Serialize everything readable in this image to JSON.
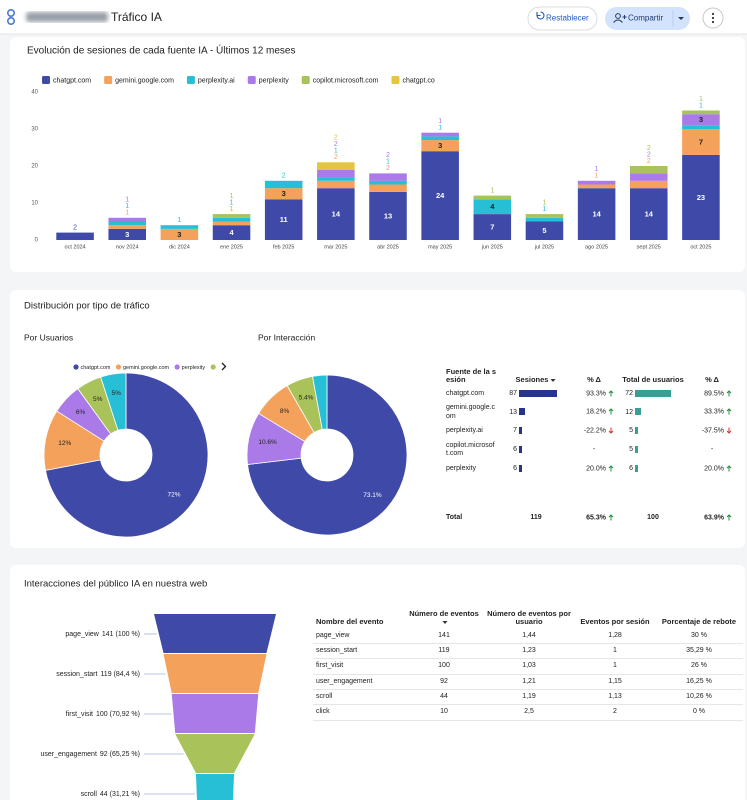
{
  "header": {
    "title": "Tráfico IA",
    "reset": "Restablecer",
    "share": "Compartir"
  },
  "sections": {
    "traffic_title": "Distribución por tipo de tráfico",
    "audience_title": "Interacciones del público IA en nuestra web"
  },
  "chart_data": [
    {
      "type": "bar",
      "stacked": true,
      "title": "Evolución de sesiones de cada fuente IA - Últimos 12 meses",
      "categories": [
        "oct 2024",
        "nov 2024",
        "dic 2024",
        "ene 2025",
        "feb 2025",
        "mar 2025",
        "abr 2025",
        "may 2025",
        "jun 2025",
        "jul 2025",
        "ago 2025",
        "sept 2025",
        "oct 2025"
      ],
      "series": [
        {
          "name": "chatgpt.com",
          "color": "#3f4aa8",
          "values": [
            2,
            3,
            0,
            4,
            11,
            14,
            13,
            24,
            7,
            5,
            14,
            14,
            23
          ]
        },
        {
          "name": "gemini.google.com",
          "color": "#f3a15b",
          "values": [
            0,
            1,
            3,
            1,
            3,
            2,
            2,
            3,
            0,
            0,
            1,
            2,
            7
          ]
        },
        {
          "name": "perplexity.ai",
          "color": "#27bfd6",
          "values": [
            0,
            1,
            1,
            1,
            2,
            1,
            1,
            1,
            4,
            1,
            0,
            0,
            1
          ]
        },
        {
          "name": "perplexity",
          "color": "#a97ae8",
          "values": [
            0,
            1,
            0,
            0,
            0,
            2,
            2,
            1,
            0,
            0,
            1,
            2,
            3
          ]
        },
        {
          "name": "copilot.microsoft.com",
          "color": "#a9c25a",
          "values": [
            0,
            0,
            0,
            1,
            0,
            0,
            0,
            0,
            1,
            1,
            0,
            2,
            1
          ]
        },
        {
          "name": "chatgpt.co",
          "color": "#e5c441",
          "values": [
            0,
            0,
            0,
            0,
            0,
            2,
            0,
            0,
            0,
            0,
            0,
            0,
            0
          ]
        }
      ],
      "ylim": [
        0,
        40
      ],
      "yticks": [
        0,
        10,
        20,
        30,
        40
      ],
      "grid": false
    },
    {
      "type": "pie",
      "donut": true,
      "title": "Por Usuarios",
      "legend": true,
      "categories": [
        "chatgpt.com",
        "gemini.google.com",
        "perplexity",
        "copilot.microsoft.com",
        "perplexity.ai"
      ],
      "colors": [
        "#3f4aa8",
        "#f3a15b",
        "#a97ae8",
        "#a9c25a",
        "#27bfd6"
      ],
      "values": [
        72,
        12,
        6,
        5,
        5
      ],
      "value_labels": [
        "72%",
        "12%",
        "6%",
        "5%",
        "5%"
      ]
    },
    {
      "type": "pie",
      "donut": true,
      "title": "Por Interacción",
      "legend": false,
      "categories": [
        "chatgpt.com",
        "perplexity",
        "gemini.google.com",
        "copilot.microsoft.com",
        "perplexity.ai"
      ],
      "colors": [
        "#3f4aa8",
        "#a97ae8",
        "#f3a15b",
        "#a9c25a",
        "#27bfd6"
      ],
      "values": [
        73.1,
        10.6,
        8,
        5.4,
        2.9
      ],
      "value_labels": [
        "73.1%",
        "10.6%",
        "8%",
        "5.4%",
        null
      ]
    },
    {
      "type": "funnel",
      "categories": [
        "page_view",
        "session_start",
        "first_visit",
        "user_engagement",
        "scroll"
      ],
      "colors": [
        "#3f4aa8",
        "#f3a15b",
        "#a97ae8",
        "#a9c25a",
        "#27bfd6"
      ],
      "values": [
        141,
        119,
        100,
        92,
        44
      ],
      "value_labels": [
        "141 (100 %)",
        "119 (84,4 %)",
        "100 (70,92 %)",
        "92 (65,25 %)",
        "44 (31,21 %)"
      ]
    }
  ],
  "source_table": {
    "columns": [
      "Fuente de la sesión",
      "Sesiones",
      "% Δ",
      "Total de usuarios",
      "% Δ"
    ],
    "rows": [
      [
        "chatgpt.com",
        87,
        "93.3%",
        72,
        "89.5%"
      ],
      [
        "gemini.google.com",
        13,
        "18.2%",
        12,
        "33.3%"
      ],
      [
        "perplexity.ai",
        7,
        "-22.2%",
        5,
        "-37.5%"
      ],
      [
        "copilot.microsoft.com",
        6,
        "-",
        5,
        "-"
      ],
      [
        "perplexity",
        6,
        "20.0%",
        6,
        "20.0%"
      ]
    ],
    "total": [
      "Total",
      119,
      "65.3%",
      100,
      "63.9%"
    ]
  },
  "events_table": {
    "columns": [
      "Nombre del evento",
      "Número de eventos",
      "Número de eventos por usuario",
      "Eventos por sesión",
      "Porcentaje de rebote"
    ],
    "rows": [
      [
        "page_view",
        141,
        "1,44",
        "1,28",
        "30 %"
      ],
      [
        "session_start",
        119,
        "1,23",
        1,
        "35,29 %"
      ],
      [
        "first_visit",
        100,
        "1,03",
        1,
        "26 %"
      ],
      [
        "user_engagement",
        92,
        "1,21",
        "1,15",
        "16,25 %"
      ],
      [
        "scroll",
        44,
        "1,19",
        "1,13",
        "10,26 %"
      ],
      [
        "click",
        10,
        "2,5",
        2,
        "0 %"
      ]
    ]
  }
}
